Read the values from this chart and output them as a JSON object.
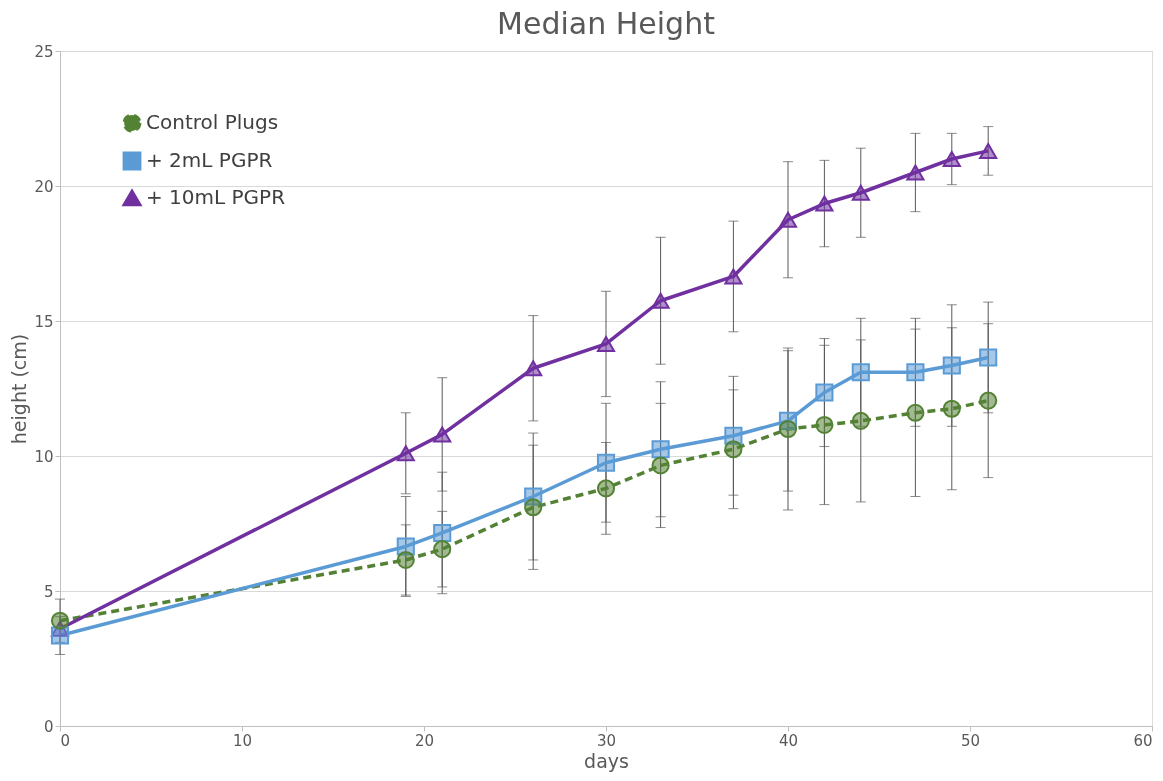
{
  "chart_data": {
    "type": "line",
    "title": "Median Height",
    "xlabel": "days",
    "ylabel": "height (cm)",
    "x": [
      0,
      19,
      21,
      26,
      30,
      33,
      37,
      40,
      42,
      44,
      47,
      49,
      51
    ],
    "series": [
      {
        "name": "Control Plugs",
        "color": "#548235",
        "marker": "circle",
        "line_style": "dashed",
        "values": [
          3.9,
          6.15,
          6.55,
          8.1,
          8.8,
          9.65,
          10.25,
          11.0,
          11.15,
          11.3,
          11.6,
          11.75,
          12.05
        ],
        "errors": [
          0.8,
          1.3,
          1.4,
          2.3,
          1.7,
          2.3,
          2.2,
          3.0,
          2.95,
          3.0,
          3.1,
          3.0,
          2.85
        ]
      },
      {
        "name": "+ 2mL PGPR",
        "color": "#5b9bd5",
        "marker": "square",
        "line_style": "solid",
        "values": [
          3.35,
          6.65,
          7.15,
          8.5,
          9.75,
          10.25,
          10.75,
          11.3,
          12.35,
          13.1,
          13.1,
          13.35,
          13.65
        ],
        "errors": [
          0.7,
          1.85,
          2.25,
          2.35,
          2.2,
          2.5,
          2.2,
          2.6,
          2.0,
          2.0,
          2.0,
          2.25,
          2.05
        ]
      },
      {
        "name": "+ 10mL PGPR",
        "color": "#7030a0",
        "marker": "triangle",
        "line_style": "solid",
        "values": [
          3.6,
          10.1,
          10.8,
          13.25,
          14.15,
          15.75,
          16.65,
          18.75,
          19.35,
          19.75,
          20.5,
          21.0,
          21.3
        ],
        "errors": [
          null,
          1.5,
          2.1,
          1.95,
          1.95,
          2.35,
          2.05,
          2.15,
          1.6,
          1.65,
          1.45,
          0.95,
          0.9
        ]
      }
    ],
    "xlim": [
      0,
      60
    ],
    "xticks": [
      0,
      10,
      20,
      30,
      40,
      50,
      60
    ],
    "ylim": [
      0,
      25
    ],
    "yticks": [
      0,
      5,
      10,
      15,
      20,
      25
    ],
    "grid": "y",
    "legend": "top left"
  }
}
